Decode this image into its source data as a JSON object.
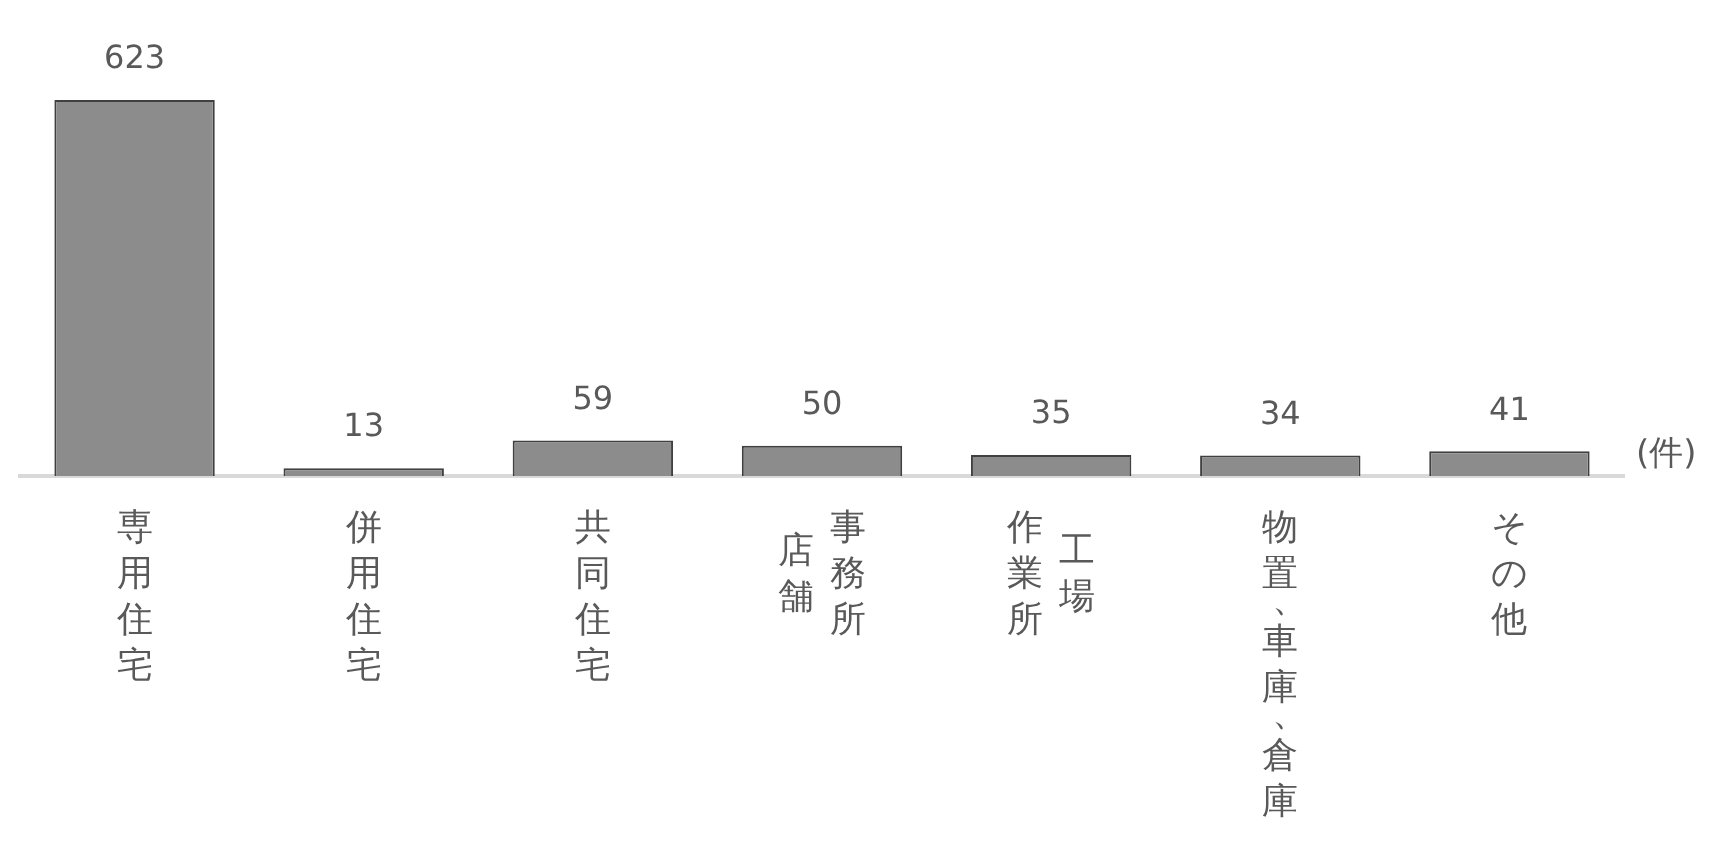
{
  "chart_data": {
    "type": "bar",
    "categories": [
      "専用住宅",
      "併用住宅",
      "共同住宅",
      "事務所店舗",
      "工場作業所",
      "物置、車庫、倉庫",
      "その他"
    ],
    "values": [
      623,
      13,
      59,
      50,
      35,
      34,
      41
    ],
    "color": "#8c8c8c",
    "ylabel": "(件)",
    "data_labels": true,
    "grid": false,
    "legend": false
  }
}
